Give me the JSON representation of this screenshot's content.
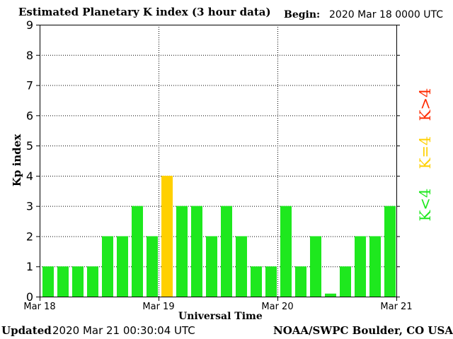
{
  "header": {
    "title": "Estimated Planetary K index (3 hour data)",
    "begin_label": "Begin:",
    "begin_value": "2020 Mar 18 0000 UTC"
  },
  "footer": {
    "updated_label": "Updated",
    "updated_value": "2020 Mar 21 00:30:04 UTC",
    "credit": "NOAA/SWPC Boulder, CO USA"
  },
  "legend": [
    {
      "label": "K>4",
      "color": "#ff2a00"
    },
    {
      "label": "K=4",
      "color": "#ffd000"
    },
    {
      "label": "K<4",
      "color": "#1ee81e"
    }
  ],
  "colors": {
    "below4": "#1ee81e",
    "equal4": "#ffd000",
    "above4": "#ff2a00",
    "axis": "#000000",
    "grid": "#000000"
  },
  "chart_data": {
    "type": "bar",
    "xlabel": "Universal Time",
    "ylabel": "Kp index",
    "ylim": [
      0,
      9
    ],
    "yticks": [
      "0",
      "1",
      "2",
      "3",
      "4",
      "5",
      "6",
      "7",
      "8",
      "9"
    ],
    "xticks": [
      "Mar 18",
      "Mar 19",
      "Mar 20",
      "Mar 21"
    ],
    "grid": "dotted",
    "values": [
      1,
      1,
      1,
      1,
      2,
      2,
      3,
      2,
      4,
      3,
      3,
      2,
      3,
      2,
      1,
      1,
      3,
      1,
      2,
      0.1,
      1,
      2,
      2,
      3
    ]
  }
}
